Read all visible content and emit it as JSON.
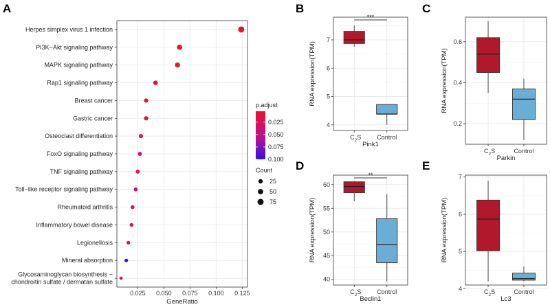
{
  "chart_data": [
    {
      "panel": "A",
      "type": "scatter",
      "xlabel": "GeneRatio",
      "xlim": [
        0.005,
        0.13
      ],
      "xticks": [
        0.025,
        0.05,
        0.075,
        0.1,
        0.125
      ],
      "xtick_labels": [
        "0.025",
        "0.050",
        "0.075",
        "0.100",
        "0.125"
      ],
      "color_legend": {
        "title": "p.adjust",
        "ticks": [
          "0.025",
          "0.050",
          "0.075",
          "0.100"
        ],
        "low_color": "#ee1030",
        "high_color": "#3010e8"
      },
      "size_legend": {
        "title": "Count",
        "values": [
          "25",
          "50",
          "75"
        ]
      },
      "points": [
        {
          "term": "Herpes simplex virus 1 infection",
          "gene_ratio": 0.124,
          "p_adjust": 0.003,
          "count": 75
        },
        {
          "term": "PI3K−Akt signaling pathway",
          "gene_ratio": 0.065,
          "p_adjust": 0.005,
          "count": 42
        },
        {
          "term": "MAPK signaling pathway",
          "gene_ratio": 0.063,
          "p_adjust": 0.004,
          "count": 40
        },
        {
          "term": "Rap1 signaling pathway",
          "gene_ratio": 0.042,
          "p_adjust": 0.008,
          "count": 27
        },
        {
          "term": "Breast cancer",
          "gene_ratio": 0.033,
          "p_adjust": 0.012,
          "count": 21
        },
        {
          "term": "Gastric cancer",
          "gene_ratio": 0.033,
          "p_adjust": 0.014,
          "count": 21
        },
        {
          "term": "Osteoclast differentiation",
          "gene_ratio": 0.028,
          "p_adjust": 0.025,
          "count": 18
        },
        {
          "term": "FoxO signaling pathway",
          "gene_ratio": 0.027,
          "p_adjust": 0.045,
          "count": 17
        },
        {
          "term": "TNF signaling pathway",
          "gene_ratio": 0.025,
          "p_adjust": 0.03,
          "count": 16
        },
        {
          "term": "Toll−like receptor signaling pathway",
          "gene_ratio": 0.023,
          "p_adjust": 0.035,
          "count": 15
        },
        {
          "term": "Rheumatoid arthritis",
          "gene_ratio": 0.02,
          "p_adjust": 0.04,
          "count": 13
        },
        {
          "term": "Inflammatory bowel disease",
          "gene_ratio": 0.019,
          "p_adjust": 0.02,
          "count": 12
        },
        {
          "term": "Legionellosis",
          "gene_ratio": 0.016,
          "p_adjust": 0.03,
          "count": 10
        },
        {
          "term": "Mineral absorption",
          "gene_ratio": 0.014,
          "p_adjust": 0.1,
          "count": 9
        },
        {
          "term": "Glycosaminoglycan biosynthesis −\nchondroitin sulfate / dermatan sulfate",
          "gene_ratio": 0.009,
          "p_adjust": 0.01,
          "count": 5
        }
      ]
    },
    {
      "panel": "B",
      "type": "box",
      "gene": "Pink1",
      "ylabel": "RNA expression(TPM)",
      "ylim": [
        3.8,
        7.8
      ],
      "yticks": [
        "4",
        "5",
        "6",
        "7"
      ],
      "significance": "***",
      "groups": [
        {
          "label": "C2S",
          "color": "#b2182b",
          "min": 6.75,
          "q1": 6.87,
          "median": 7.0,
          "q3": 7.3,
          "max": 7.5
        },
        {
          "label": "Control",
          "color": "#6aaed6",
          "min": 4.0,
          "q1": 4.38,
          "median": 4.38,
          "q3": 4.72,
          "max": 4.72
        }
      ]
    },
    {
      "panel": "C",
      "type": "box",
      "gene": "Parkin",
      "ylabel": "RNA expression(TPM)",
      "ylim": [
        0.1,
        0.72
      ],
      "yticks": [
        "0.2",
        "0.4",
        "0.6"
      ],
      "significance": "",
      "groups": [
        {
          "label": "C2S",
          "color": "#b2182b",
          "min": 0.35,
          "q1": 0.45,
          "median": 0.54,
          "q3": 0.62,
          "max": 0.7
        },
        {
          "label": "Control",
          "color": "#6aaed6",
          "min": 0.12,
          "q1": 0.22,
          "median": 0.32,
          "q3": 0.37,
          "max": 0.42
        }
      ]
    },
    {
      "panel": "D",
      "type": "box",
      "gene": "Beclin1",
      "ylabel": "RNA expression(TPM)",
      "ylim": [
        38.8,
        62.0
      ],
      "yticks": [
        "40",
        "45",
        "50",
        "55",
        "60"
      ],
      "significance": "**",
      "groups": [
        {
          "label": "C2S",
          "color": "#b2182b",
          "min": 56.5,
          "q1": 58.3,
          "median": 59.6,
          "q3": 60.6,
          "max": 60.7
        },
        {
          "label": "Control",
          "color": "#6aaed6",
          "min": 39.5,
          "q1": 43.5,
          "median": 47.3,
          "q3": 52.8,
          "max": 58.0
        }
      ]
    },
    {
      "panel": "E",
      "type": "box",
      "gene": "Lc3",
      "ylabel": "RNA expression(TPM)",
      "ylim": [
        4.1,
        7.05
      ],
      "yticks": [
        "4",
        "5",
        "6",
        "7"
      ],
      "significance": "",
      "groups": [
        {
          "label": "C2S",
          "color": "#b2182b",
          "min": 4.2,
          "q1": 5.02,
          "median": 5.87,
          "q3": 6.38,
          "max": 6.9
        },
        {
          "label": "Control",
          "color": "#6aaed6",
          "min": 4.2,
          "q1": 4.23,
          "median": 4.27,
          "q3": 4.42,
          "max": 4.6
        }
      ]
    }
  ],
  "panel_letters": {
    "A": "A",
    "B": "B",
    "C": "C",
    "D": "D",
    "E": "E"
  },
  "group_labels": {
    "treat_main": "C",
    "treat_sub": "2",
    "treat_tail": "S",
    "control": "Control"
  }
}
